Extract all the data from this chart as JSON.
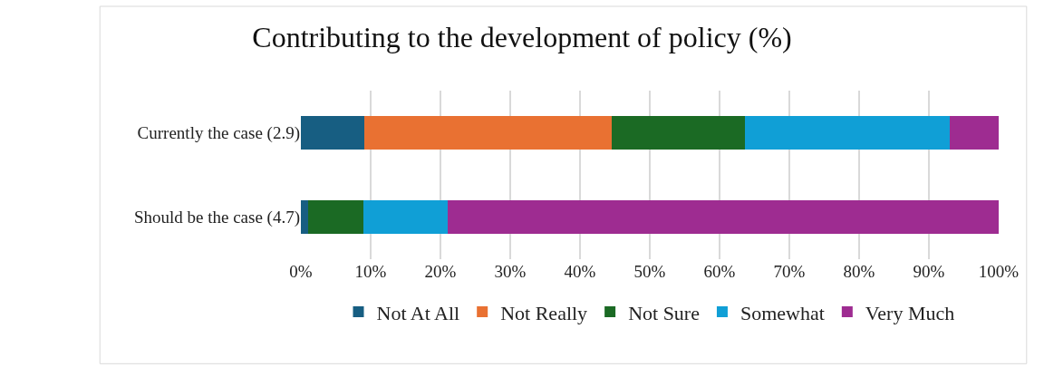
{
  "chart_data": {
    "type": "bar",
    "orientation": "horizontal",
    "stacked": true,
    "title": "Contributing to the development of policy (%)",
    "categories": [
      "Currently the case (2.9)",
      "Should be the case (4.7)"
    ],
    "series": [
      {
        "name": "Not At All",
        "color": "#175e82",
        "values": [
          9.1,
          1.0
        ]
      },
      {
        "name": "Not Really",
        "color": "#e97132",
        "values": [
          35.4,
          0
        ]
      },
      {
        "name": "Not Sure",
        "color": "#1b6a24",
        "values": [
          19.2,
          8.0
        ]
      },
      {
        "name": "Somewhat",
        "color": "#109fd6",
        "values": [
          29.3,
          12.1
        ]
      },
      {
        "name": "Very Much",
        "color": "#9e2c91",
        "values": [
          7.0,
          78.9
        ]
      }
    ],
    "xlim": [
      0,
      100
    ],
    "xticks": [
      {
        "value": 0,
        "label": "0%"
      },
      {
        "value": 10,
        "label": "10%"
      },
      {
        "value": 20,
        "label": "20%"
      },
      {
        "value": 30,
        "label": "30%"
      },
      {
        "value": 40,
        "label": "40%"
      },
      {
        "value": 50,
        "label": "50%"
      },
      {
        "value": 60,
        "label": "60%"
      },
      {
        "value": 70,
        "label": "70%"
      },
      {
        "value": 80,
        "label": "80%"
      },
      {
        "value": 90,
        "label": "90%"
      },
      {
        "value": 100,
        "label": "100%"
      }
    ],
    "grid": "x",
    "legend": "bottom"
  }
}
